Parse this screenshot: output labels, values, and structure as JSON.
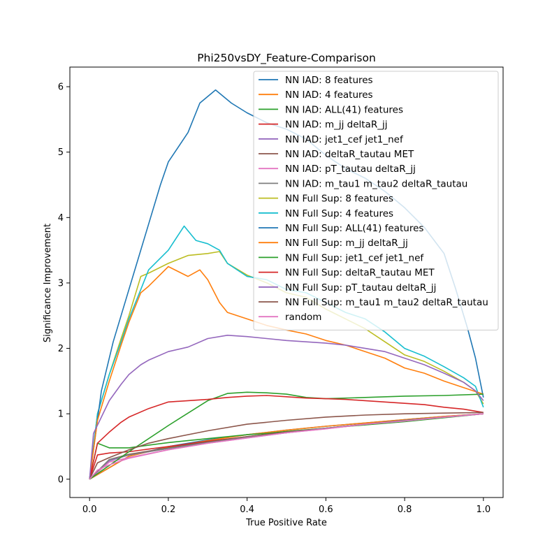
{
  "chart_data": {
    "type": "line",
    "title": "Phi250vsDY_Feature-Comparison",
    "xlabel": "True Positive Rate",
    "ylabel": "Significance Improvement",
    "xlim": [
      -0.05,
      1.05
    ],
    "ylim": [
      -0.28,
      6.3
    ],
    "x_ticks": [
      0.0,
      0.2,
      0.4,
      0.6,
      0.8,
      1.0
    ],
    "x_tick_labels": [
      "0.0",
      "0.2",
      "0.4",
      "0.6",
      "0.8",
      "1.0"
    ],
    "y_ticks": [
      0,
      1,
      2,
      3,
      4,
      5,
      6
    ],
    "y_tick_labels": [
      "0",
      "1",
      "2",
      "3",
      "4",
      "5",
      "6"
    ],
    "grid": false,
    "legend_position": "top-right",
    "series": [
      {
        "name": "NN IAD: 8 features",
        "color": "#1f77b4",
        "x": [
          0.0,
          0.1,
          0.2,
          0.3,
          0.4,
          0.5,
          0.6,
          0.7,
          0.8,
          0.9,
          1.0
        ],
        "y": [
          0.0,
          0.35,
          0.5,
          0.6,
          0.68,
          0.75,
          0.81,
          0.86,
          0.91,
          0.96,
          1.0
        ]
      },
      {
        "name": "NN IAD: 4 features",
        "color": "#ff7f0e",
        "x": [
          0.0,
          0.1,
          0.2,
          0.3,
          0.4,
          0.5,
          0.6,
          0.7,
          0.8,
          0.9,
          1.0
        ],
        "y": [
          0.0,
          0.35,
          0.49,
          0.59,
          0.68,
          0.75,
          0.81,
          0.86,
          0.91,
          0.96,
          1.0
        ]
      },
      {
        "name": "NN IAD: ALL(41) features",
        "color": "#2ca02c",
        "x": [
          0.0,
          0.02,
          0.05,
          0.1,
          0.15,
          0.2,
          0.3,
          0.35,
          0.4,
          0.45,
          0.5,
          0.6,
          0.7,
          0.8,
          0.9,
          1.0
        ],
        "y": [
          0.0,
          0.55,
          0.48,
          0.48,
          0.52,
          0.56,
          0.62,
          0.65,
          0.68,
          0.7,
          0.73,
          0.78,
          0.83,
          0.88,
          0.94,
          1.0
        ]
      },
      {
        "name": "NN IAD: m_jj deltaR_jj",
        "color": "#d62728",
        "x": [
          0.0,
          0.02,
          0.05,
          0.1,
          0.15,
          0.2,
          0.3,
          0.4,
          0.5,
          0.6,
          0.7,
          0.8,
          0.9,
          1.0
        ],
        "y": [
          0.0,
          0.37,
          0.4,
          0.42,
          0.46,
          0.5,
          0.58,
          0.65,
          0.72,
          0.78,
          0.84,
          0.9,
          0.95,
          1.0
        ]
      },
      {
        "name": "NN IAD: jet1_cef jet1_nef",
        "color": "#9467bd",
        "x": [
          0.0,
          0.05,
          0.1,
          0.2,
          0.3,
          0.4,
          0.5,
          0.6,
          0.7,
          0.8,
          0.9,
          1.0
        ],
        "y": [
          0.0,
          0.28,
          0.37,
          0.47,
          0.56,
          0.64,
          0.71,
          0.78,
          0.84,
          0.9,
          0.95,
          1.0
        ]
      },
      {
        "name": "NN IAD: deltaR_tautau MET",
        "color": "#8c564b",
        "x": [
          0.0,
          0.05,
          0.1,
          0.2,
          0.3,
          0.4,
          0.5,
          0.6,
          0.7,
          0.8,
          0.9,
          1.0
        ],
        "y": [
          0.0,
          0.3,
          0.38,
          0.48,
          0.57,
          0.65,
          0.72,
          0.78,
          0.84,
          0.9,
          0.95,
          1.0
        ]
      },
      {
        "name": "NN IAD: pT_tautau deltaR_jj",
        "color": "#e377c2",
        "x": [
          0.0,
          0.05,
          0.1,
          0.2,
          0.3,
          0.4,
          0.5,
          0.6,
          0.7,
          0.8,
          0.9,
          1.0
        ],
        "y": [
          0.0,
          0.26,
          0.33,
          0.45,
          0.55,
          0.63,
          0.71,
          0.77,
          0.84,
          0.89,
          0.95,
          1.0
        ]
      },
      {
        "name": "NN IAD: m_tau1 m_tau2 deltaR_tautau",
        "color": "#7f7f7f",
        "x": [
          0.0,
          0.05,
          0.1,
          0.2,
          0.3,
          0.4,
          0.5,
          0.6,
          0.7,
          0.8,
          0.9,
          1.0
        ],
        "y": [
          0.0,
          0.3,
          0.37,
          0.47,
          0.56,
          0.64,
          0.71,
          0.78,
          0.84,
          0.9,
          0.95,
          1.0
        ]
      },
      {
        "name": "NN Full Sup: 8 features",
        "color": "#bcbd22",
        "x": [
          0.0,
          0.02,
          0.05,
          0.08,
          0.1,
          0.13,
          0.15,
          0.2,
          0.25,
          0.3,
          0.33,
          0.35,
          0.4,
          0.45,
          0.5,
          0.55,
          0.6,
          0.65,
          0.7,
          0.75,
          0.8,
          0.85,
          0.9,
          0.95,
          0.98,
          1.0
        ],
        "y": [
          0.0,
          1.0,
          1.6,
          2.15,
          2.5,
          3.1,
          3.15,
          3.3,
          3.42,
          3.45,
          3.48,
          3.3,
          3.12,
          3.0,
          2.85,
          2.78,
          2.6,
          2.45,
          2.3,
          2.1,
          1.9,
          1.8,
          1.65,
          1.48,
          1.35,
          1.15
        ]
      },
      {
        "name": "NN Full Sup: 4 features",
        "color": "#17becf",
        "x": [
          0.0,
          0.02,
          0.05,
          0.08,
          0.1,
          0.13,
          0.15,
          0.2,
          0.24,
          0.27,
          0.3,
          0.33,
          0.35,
          0.4,
          0.45,
          0.5,
          0.55,
          0.6,
          0.65,
          0.7,
          0.75,
          0.8,
          0.85,
          0.9,
          0.95,
          0.98,
          1.0
        ],
        "y": [
          0.0,
          1.0,
          1.6,
          2.1,
          2.45,
          2.9,
          3.2,
          3.5,
          3.87,
          3.65,
          3.6,
          3.5,
          3.3,
          3.1,
          3.05,
          2.9,
          2.85,
          2.7,
          2.55,
          2.45,
          2.25,
          2.0,
          1.88,
          1.72,
          1.55,
          1.42,
          1.1
        ]
      },
      {
        "name": "NN Full Sup: ALL(41) features",
        "color": "#1f77b4",
        "x": [
          0.0,
          0.03,
          0.06,
          0.1,
          0.15,
          0.18,
          0.2,
          0.25,
          0.28,
          0.32,
          0.36,
          0.4,
          0.45,
          0.5,
          0.55,
          0.6,
          0.65,
          0.7,
          0.75,
          0.8,
          0.85,
          0.9,
          0.93,
          0.96,
          0.98,
          1.0
        ],
        "y": [
          0.0,
          1.35,
          2.1,
          2.9,
          3.9,
          4.5,
          4.85,
          5.3,
          5.75,
          5.95,
          5.75,
          5.6,
          5.45,
          5.35,
          5.2,
          4.95,
          4.75,
          4.6,
          4.4,
          4.15,
          3.85,
          3.45,
          2.9,
          2.3,
          1.85,
          1.25
        ]
      },
      {
        "name": "NN Full Sup: m_jj deltaR_jj",
        "color": "#ff7f0e",
        "x": [
          0.0,
          0.02,
          0.05,
          0.08,
          0.1,
          0.13,
          0.15,
          0.2,
          0.25,
          0.28,
          0.3,
          0.33,
          0.35,
          0.4,
          0.45,
          0.5,
          0.55,
          0.6,
          0.65,
          0.7,
          0.75,
          0.8,
          0.85,
          0.9,
          0.95,
          1.0
        ],
        "y": [
          0.0,
          0.9,
          1.5,
          2.05,
          2.4,
          2.85,
          2.95,
          3.25,
          3.1,
          3.2,
          3.05,
          2.7,
          2.55,
          2.45,
          2.35,
          2.28,
          2.22,
          2.12,
          2.05,
          1.95,
          1.85,
          1.7,
          1.62,
          1.5,
          1.4,
          1.3
        ]
      },
      {
        "name": "NN Full Sup: jet1_cef jet1_nef",
        "color": "#2ca02c",
        "x": [
          0.0,
          0.1,
          0.2,
          0.3,
          0.35,
          0.4,
          0.45,
          0.5,
          0.55,
          0.6,
          0.7,
          0.8,
          0.9,
          1.0
        ],
        "y": [
          0.0,
          0.42,
          0.82,
          1.2,
          1.31,
          1.33,
          1.32,
          1.3,
          1.25,
          1.23,
          1.25,
          1.27,
          1.28,
          1.3
        ]
      },
      {
        "name": "NN Full Sup: deltaR_tautau MET",
        "color": "#d62728",
        "x": [
          0.0,
          0.02,
          0.05,
          0.08,
          0.1,
          0.15,
          0.2,
          0.25,
          0.3,
          0.35,
          0.4,
          0.45,
          0.5,
          0.55,
          0.6,
          0.65,
          0.7,
          0.75,
          0.8,
          0.85,
          0.9,
          0.95,
          1.0
        ],
        "y": [
          0.0,
          0.55,
          0.72,
          0.87,
          0.95,
          1.08,
          1.18,
          1.2,
          1.22,
          1.25,
          1.27,
          1.28,
          1.26,
          1.24,
          1.23,
          1.22,
          1.2,
          1.18,
          1.16,
          1.14,
          1.1,
          1.07,
          1.02
        ]
      },
      {
        "name": "NN Full Sup: pT_tautau deltaR_jj",
        "color": "#9467bd",
        "x": [
          0.0,
          0.01,
          0.03,
          0.05,
          0.08,
          0.1,
          0.13,
          0.15,
          0.2,
          0.25,
          0.3,
          0.35,
          0.4,
          0.45,
          0.5,
          0.55,
          0.6,
          0.65,
          0.7,
          0.75,
          0.8,
          0.85,
          0.9,
          0.95,
          0.98,
          1.0
        ],
        "y": [
          0.0,
          0.7,
          0.95,
          1.2,
          1.45,
          1.6,
          1.75,
          1.82,
          1.95,
          2.02,
          2.15,
          2.2,
          2.18,
          2.15,
          2.12,
          2.1,
          2.08,
          2.05,
          2.0,
          1.95,
          1.85,
          1.75,
          1.62,
          1.48,
          1.35,
          1.2
        ]
      },
      {
        "name": "NN Full Sup: m_tau1 m_tau2 deltaR_tautau",
        "color": "#8c564b",
        "x": [
          0.0,
          0.02,
          0.05,
          0.1,
          0.15,
          0.2,
          0.3,
          0.4,
          0.5,
          0.6,
          0.7,
          0.8,
          0.9,
          1.0
        ],
        "y": [
          0.0,
          0.25,
          0.33,
          0.45,
          0.55,
          0.62,
          0.74,
          0.84,
          0.9,
          0.95,
          0.98,
          1.0,
          1.01,
          1.02
        ]
      },
      {
        "name": "random",
        "color": "#e377c2",
        "x": [
          0.0,
          0.02,
          0.05,
          0.1,
          0.2,
          0.3,
          0.4,
          0.5,
          0.6,
          0.7,
          0.8,
          0.9,
          1.0
        ],
        "y": [
          0.0,
          0.14,
          0.22,
          0.32,
          0.45,
          0.55,
          0.63,
          0.71,
          0.77,
          0.84,
          0.89,
          0.95,
          1.0
        ]
      }
    ]
  }
}
